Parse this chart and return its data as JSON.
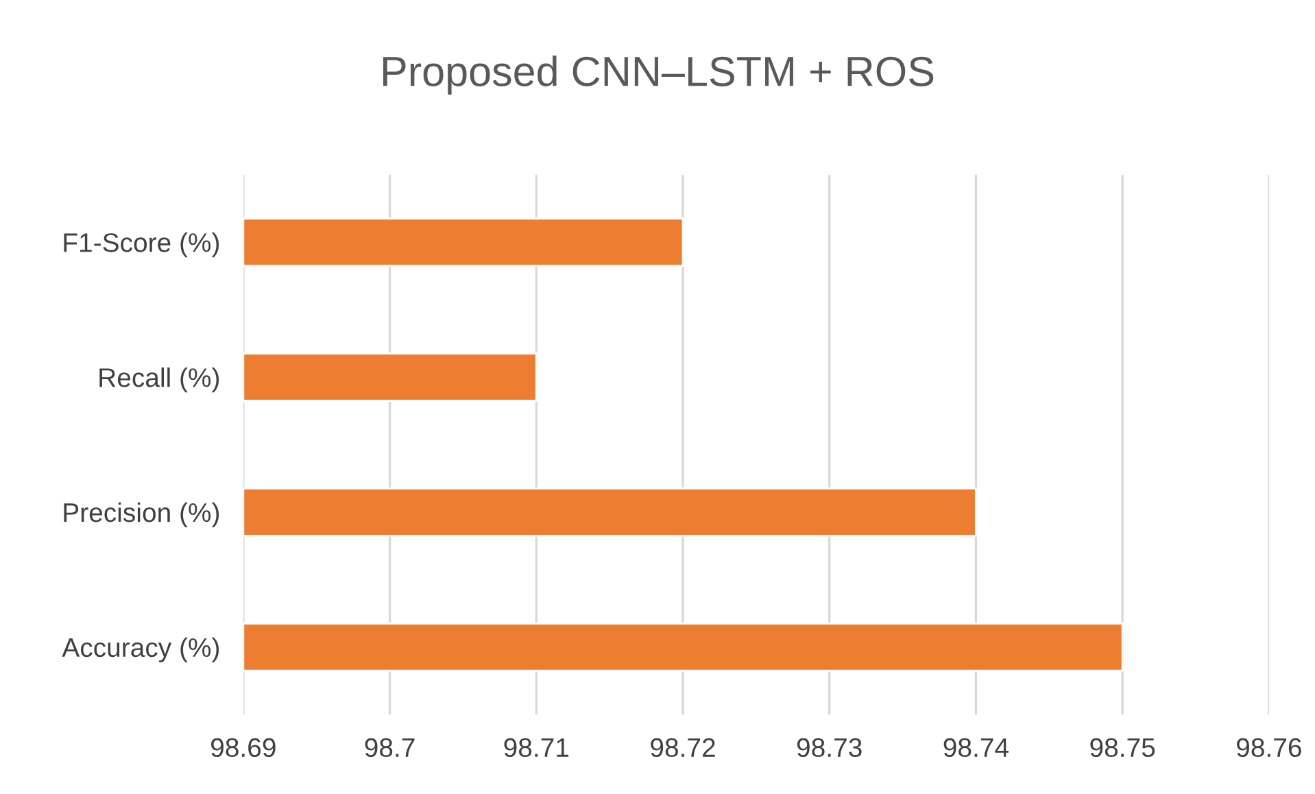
{
  "chart_data": {
    "type": "bar",
    "orientation": "horizontal",
    "title": "Proposed CNN–LSTM + ROS",
    "categories": [
      "F1-Score (%)",
      "Recall (%)",
      "Precision (%)",
      "Accuracy (%)"
    ],
    "values": [
      98.72,
      98.71,
      98.74,
      98.75
    ],
    "color": "#ed7d31",
    "xlim": [
      98.69,
      98.76
    ],
    "xticks": [
      98.69,
      98.7,
      98.71,
      98.72,
      98.73,
      98.74,
      98.75,
      98.76
    ],
    "grid": "x",
    "legend": false
  }
}
